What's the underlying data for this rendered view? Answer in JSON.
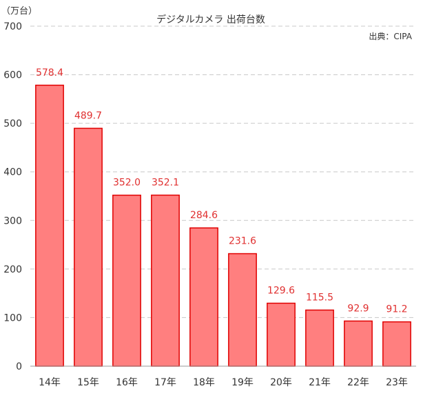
{
  "chart_data": {
    "type": "bar",
    "title": "デジタルカメラ 出荷台数",
    "source": "出典：CIPA",
    "unit": "（万台）",
    "xlabel": "",
    "ylabel": "",
    "categories": [
      "14年",
      "15年",
      "16年",
      "17年",
      "18年",
      "19年",
      "20年",
      "21年",
      "22年",
      "23年"
    ],
    "series": [
      {
        "values": [
          578.4,
          489.7,
          352.0,
          352.1,
          284.6,
          231.6,
          129.6,
          115.5,
          92.9,
          91.2
        ],
        "labels": [
          "578.4",
          "489.7",
          "352.0",
          "352.1",
          "284.6",
          "231.6",
          "129.6",
          "115.5",
          "92.9",
          "91.2"
        ]
      }
    ],
    "ylim": [
      0,
      700
    ],
    "yticks": [
      0,
      100,
      200,
      300,
      400,
      500,
      600,
      700
    ],
    "grid": true,
    "legend": "none",
    "colors": {
      "bar_fill": "#ff7f7f",
      "bar_stroke": "#e00000",
      "label": "#e03030",
      "grid": "#c8c8c8",
      "axis": "#999999"
    }
  }
}
